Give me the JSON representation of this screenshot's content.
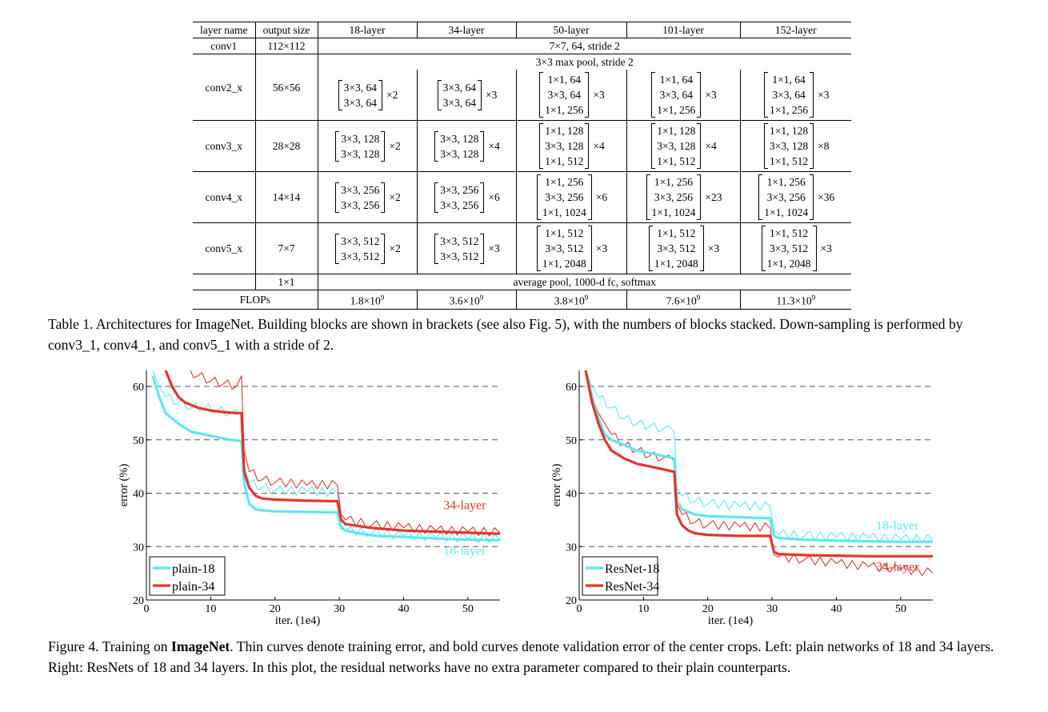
{
  "table": {
    "headers": [
      "layer name",
      "output size",
      "18-layer",
      "34-layer",
      "50-layer",
      "101-layer",
      "152-layer"
    ],
    "conv1": {
      "name": "conv1",
      "size": "112×112",
      "spec": "7×7, 64, stride 2"
    },
    "pool": {
      "spec": "3×3 max pool, stride 2"
    },
    "stages": [
      {
        "name": "conv2_x",
        "size": "56×56",
        "basic": [
          "3×3, 64",
          "3×3, 64"
        ],
        "bottleneck": [
          "1×1, 64",
          "3×3, 64",
          "1×1, 256"
        ],
        "reps": [
          "×2",
          "×3",
          "×3",
          "×3",
          "×3"
        ]
      },
      {
        "name": "conv3_x",
        "size": "28×28",
        "basic": [
          "3×3, 128",
          "3×3, 128"
        ],
        "bottleneck": [
          "1×1, 128",
          "3×3, 128",
          "1×1, 512"
        ],
        "reps": [
          "×2",
          "×4",
          "×4",
          "×4",
          "×8"
        ]
      },
      {
        "name": "conv4_x",
        "size": "14×14",
        "basic": [
          "3×3, 256",
          "3×3, 256"
        ],
        "bottleneck": [
          "1×1, 256",
          "3×3, 256",
          "1×1, 1024"
        ],
        "reps": [
          "×2",
          "×6",
          "×6",
          "×23",
          "×36"
        ]
      },
      {
        "name": "conv5_x",
        "size": "7×7",
        "basic": [
          "3×3, 512",
          "3×3, 512"
        ],
        "bottleneck": [
          "1×1, 512",
          "3×3, 512",
          "1×1, 2048"
        ],
        "reps": [
          "×2",
          "×3",
          "×3",
          "×3",
          "×3"
        ]
      }
    ],
    "final": {
      "size": "1×1",
      "spec": "average pool, 1000-d fc, softmax"
    },
    "flops": {
      "label": "FLOPs",
      "values": [
        {
          "base": "1.8×10",
          "exp": "9"
        },
        {
          "base": "3.6×10",
          "exp": "9"
        },
        {
          "base": "3.8×10",
          "exp": "9"
        },
        {
          "base": "7.6×10",
          "exp": "9"
        },
        {
          "base": "11.3×10",
          "exp": "9"
        }
      ]
    }
  },
  "table_caption": "Table 1. Architectures for ImageNet. Building blocks are shown in brackets (see also Fig. 5), with the numbers of blocks stacked. Down-sampling is performed by conv3_1, conv4_1, and conv5_1 with a stride of 2.",
  "figure_caption": {
    "prefix": "Figure 4. Training on ",
    "bold": "ImageNet",
    "rest": ". Thin curves denote training error, and bold curves denote validation error of the center crops. Left: plain networks of 18 and 34 layers. Right: ResNets of 18 and 34 layers. In this plot, the residual networks have no extra parameter compared to their plain counterparts."
  },
  "colors": {
    "cyan": "#5ee8f2",
    "red": "#e0362b",
    "grid": "#555555"
  },
  "chart_data": [
    {
      "type": "line",
      "xlabel": "iter. (1e4)",
      "ylabel": "error (%)",
      "xlim": [
        0,
        55
      ],
      "ylim": [
        20,
        63
      ],
      "xticks": [
        0,
        10,
        20,
        30,
        40,
        50
      ],
      "yticks": [
        20,
        30,
        40,
        50,
        60
      ],
      "gridlines_y": [
        30,
        40,
        50,
        60
      ],
      "legend": {
        "position": "bottom-left",
        "entries": [
          "plain-18",
          "plain-34"
        ]
      },
      "annotations": [
        {
          "text": "34-layer",
          "x": 49.5,
          "y": 37,
          "color": "red"
        },
        {
          "text": "18-layer",
          "x": 49.5,
          "y": 28.5,
          "color": "cyan"
        }
      ],
      "series": [
        {
          "name": "plain-18 (validation)",
          "style": "bold",
          "color": "cyan",
          "x": [
            1,
            2,
            3,
            4,
            5,
            7,
            9,
            11,
            13,
            14.8,
            15.2,
            16,
            17,
            18,
            20,
            25,
            29.7,
            30.3,
            31,
            33,
            36,
            40,
            45,
            50,
            55
          ],
          "y": [
            62,
            58,
            55,
            54,
            53,
            51.5,
            51,
            50.5,
            50,
            49.8,
            42,
            38,
            37,
            36.8,
            36.6,
            36.5,
            36.4,
            33.5,
            33,
            32.5,
            32,
            31.8,
            31.5,
            31.3,
            31.2
          ]
        },
        {
          "name": "plain-18 (training)",
          "style": "thin",
          "color": "cyan",
          "x": [
            1,
            2,
            3,
            5,
            7,
            9,
            11,
            13,
            14.8,
            15.2,
            16,
            18,
            20,
            25,
            29.7,
            30.3,
            31,
            35,
            40,
            45,
            50,
            55
          ],
          "y": [
            63,
            60,
            58,
            57,
            56,
            56,
            55.5,
            55,
            54.5,
            45,
            42,
            41,
            40.5,
            40.3,
            40,
            34,
            33,
            32.5,
            32,
            31.7,
            31.5,
            31.4
          ]
        },
        {
          "name": "plain-34 (validation)",
          "style": "bold",
          "color": "red",
          "x": [
            3,
            4,
            5,
            6,
            8,
            10,
            12,
            14,
            14.8,
            15.2,
            16,
            17,
            18,
            20,
            25,
            29.7,
            30.3,
            31,
            35,
            40,
            45,
            50,
            55
          ],
          "y": [
            63,
            60,
            58,
            57,
            56,
            55.5,
            55.2,
            55,
            55,
            44,
            41,
            39.5,
            39,
            38.8,
            38.6,
            38.5,
            35,
            34.2,
            33.5,
            33,
            32.8,
            32.6,
            32.4
          ]
        },
        {
          "name": "plain-34 (training)",
          "style": "thin",
          "color": "red",
          "x": [
            6,
            8,
            10,
            12,
            14,
            14.8,
            15.2,
            16,
            18,
            20,
            25,
            29.7,
            30.3,
            31,
            35,
            40,
            45,
            50,
            55
          ],
          "y": [
            63,
            62,
            61,
            60.5,
            60,
            62,
            48,
            44,
            42.5,
            42,
            41.5,
            41.5,
            36,
            35,
            34,
            33.5,
            33,
            32.8,
            32.6
          ]
        }
      ]
    },
    {
      "type": "line",
      "xlabel": "iter. (1e4)",
      "ylabel": "error (%)",
      "xlim": [
        0,
        55
      ],
      "ylim": [
        20,
        63
      ],
      "xticks": [
        0,
        10,
        20,
        30,
        40,
        50
      ],
      "yticks": [
        20,
        30,
        40,
        50,
        60
      ],
      "gridlines_y": [
        30,
        40,
        50,
        60
      ],
      "legend": {
        "position": "bottom-left",
        "entries": [
          "ResNet-18",
          "ResNet-34"
        ]
      },
      "annotations": [
        {
          "text": "18-layer",
          "x": 49.5,
          "y": 33.2,
          "color": "cyan"
        },
        {
          "text": "34-layer",
          "x": 49.5,
          "y": 25.5,
          "color": "red"
        }
      ],
      "series": [
        {
          "name": "ResNet-18 (validation)",
          "style": "bold",
          "color": "cyan",
          "x": [
            1,
            2,
            3,
            4,
            5,
            7,
            9,
            11,
            13,
            14.8,
            15.2,
            16,
            18,
            20,
            25,
            29.7,
            30.3,
            31,
            35,
            40,
            45,
            50,
            55
          ],
          "y": [
            63,
            58,
            54,
            51,
            50,
            49,
            48,
            47.5,
            47,
            46.5,
            38.5,
            37,
            36,
            35.7,
            35.5,
            35.3,
            32,
            31.6,
            31.3,
            31.1,
            31,
            30.9,
            30.9
          ]
        },
        {
          "name": "ResNet-18 (training)",
          "style": "thin",
          "color": "cyan",
          "x": [
            1,
            2,
            3,
            5,
            7,
            9,
            11,
            13,
            14.8,
            15.2,
            16,
            18,
            20,
            25,
            29.7,
            30.3,
            31,
            35,
            40,
            45,
            50,
            55
          ],
          "y": [
            63,
            60,
            58,
            56,
            54,
            53,
            52.5,
            52,
            51.5,
            41,
            39.5,
            38.5,
            38,
            37.5,
            37.5,
            33,
            32.3,
            32,
            31.8,
            31.6,
            31.4,
            31.3
          ]
        },
        {
          "name": "ResNet-34 (validation)",
          "style": "bold",
          "color": "red",
          "x": [
            1,
            2,
            3,
            4,
            5,
            7,
            9,
            11,
            13,
            14.8,
            15.2,
            16,
            17,
            18,
            20,
            25,
            29.7,
            30.3,
            31,
            35,
            40,
            45,
            50,
            55
          ],
          "y": [
            63,
            57,
            53,
            50,
            48,
            46.5,
            45.5,
            45,
            44.5,
            44,
            36,
            34,
            33,
            32.5,
            32.2,
            32,
            32,
            29,
            28.6,
            28.4,
            28.3,
            28.2,
            28.2,
            28.2
          ]
        },
        {
          "name": "ResNet-34 (training)",
          "style": "thin",
          "color": "red",
          "x": [
            1,
            2,
            3,
            5,
            7,
            9,
            11,
            13,
            14.8,
            15.2,
            16,
            18,
            20,
            25,
            29.7,
            30.3,
            31,
            35,
            40,
            45,
            50,
            55
          ],
          "y": [
            63,
            58,
            55,
            51,
            49,
            48,
            47,
            46.5,
            46,
            38,
            36,
            34.5,
            34,
            33.7,
            33.5,
            28.5,
            28,
            27.5,
            26.8,
            26.2,
            25.7,
            25
          ]
        }
      ]
    }
  ]
}
